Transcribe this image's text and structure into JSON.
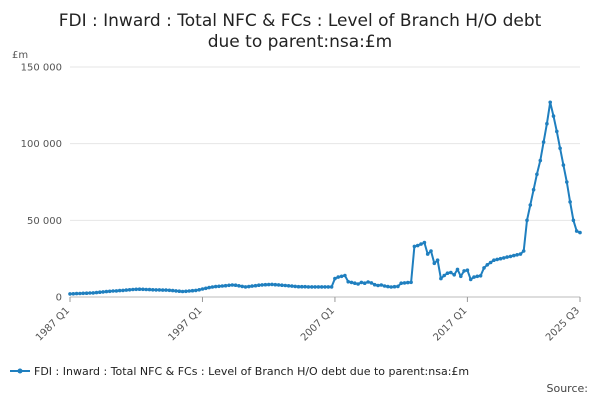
{
  "chart_data": {
    "type": "line",
    "title_line1": "FDI : Inward : Total NFC & FCs : Level of Branch H/O debt",
    "title_line2": "due to parent:nsa:£m",
    "ylabel": "£m",
    "ylim": [
      0,
      150000
    ],
    "yticks": [
      0,
      50000,
      100000,
      150000
    ],
    "ytick_labels": [
      "0",
      "50 000",
      "100 000",
      "150 000"
    ],
    "xtick_labels": [
      "1987 Q1",
      "1997 Q1",
      "2007 Q1",
      "2017 Q1",
      "2025 Q3"
    ],
    "xticks": [
      1987.0,
      1997.0,
      2007.0,
      2017.0,
      2025.5
    ],
    "xlim": [
      1987.0,
      2025.5
    ],
    "grid": true,
    "legend_position": "bottom",
    "color": "#1f7fbf",
    "series": [
      {
        "name": "FDI : Inward : Total NFC & FCs : Level of Branch H/O debt due to parent:nsa:£m",
        "points": [
          [
            1987.0,
            2000
          ],
          [
            1987.25,
            2100
          ],
          [
            1987.5,
            2200
          ],
          [
            1987.75,
            2300
          ],
          [
            1988.0,
            2400
          ],
          [
            1988.25,
            2500
          ],
          [
            1988.5,
            2600
          ],
          [
            1988.75,
            2700
          ],
          [
            1989.0,
            2900
          ],
          [
            1989.25,
            3100
          ],
          [
            1989.5,
            3300
          ],
          [
            1989.75,
            3500
          ],
          [
            1990.0,
            3700
          ],
          [
            1990.25,
            3900
          ],
          [
            1990.5,
            4000
          ],
          [
            1990.75,
            4200
          ],
          [
            1991.0,
            4300
          ],
          [
            1991.25,
            4500
          ],
          [
            1991.5,
            4700
          ],
          [
            1991.75,
            4900
          ],
          [
            1992.0,
            5000
          ],
          [
            1992.25,
            5100
          ],
          [
            1992.5,
            5000
          ],
          [
            1992.75,
            4900
          ],
          [
            1993.0,
            4800
          ],
          [
            1993.25,
            4700
          ],
          [
            1993.5,
            4600
          ],
          [
            1993.75,
            4600
          ],
          [
            1994.0,
            4500
          ],
          [
            1994.25,
            4500
          ],
          [
            1994.5,
            4400
          ],
          [
            1994.75,
            4200
          ],
          [
            1995.0,
            4000
          ],
          [
            1995.25,
            3800
          ],
          [
            1995.5,
            3600
          ],
          [
            1995.75,
            3700
          ],
          [
            1996.0,
            3900
          ],
          [
            1996.25,
            4100
          ],
          [
            1996.5,
            4300
          ],
          [
            1996.75,
            4700
          ],
          [
            1997.0,
            5200
          ],
          [
            1997.25,
            5700
          ],
          [
            1997.5,
            6100
          ],
          [
            1997.75,
            6500
          ],
          [
            1998.0,
            6800
          ],
          [
            1998.25,
            7000
          ],
          [
            1998.5,
            7200
          ],
          [
            1998.75,
            7400
          ],
          [
            1999.0,
            7600
          ],
          [
            1999.25,
            7800
          ],
          [
            1999.5,
            7700
          ],
          [
            1999.75,
            7300
          ],
          [
            2000.0,
            6900
          ],
          [
            2000.25,
            6600
          ],
          [
            2000.5,
            6800
          ],
          [
            2000.75,
            7100
          ],
          [
            2001.0,
            7400
          ],
          [
            2001.25,
            7700
          ],
          [
            2001.5,
            7900
          ],
          [
            2001.75,
            8000
          ],
          [
            2002.0,
            8100
          ],
          [
            2002.25,
            8200
          ],
          [
            2002.5,
            8000
          ],
          [
            2002.75,
            7900
          ],
          [
            2003.0,
            7700
          ],
          [
            2003.25,
            7500
          ],
          [
            2003.5,
            7300
          ],
          [
            2003.75,
            7100
          ],
          [
            2004.0,
            6900
          ],
          [
            2004.25,
            6700
          ],
          [
            2004.5,
            6700
          ],
          [
            2004.75,
            6700
          ],
          [
            2005.0,
            6600
          ],
          [
            2005.25,
            6600
          ],
          [
            2005.5,
            6600
          ],
          [
            2005.75,
            6600
          ],
          [
            2006.0,
            6600
          ],
          [
            2006.25,
            6600
          ],
          [
            2006.5,
            6600
          ],
          [
            2006.75,
            6600
          ],
          [
            2007.0,
            12000
          ],
          [
            2007.25,
            13000
          ],
          [
            2007.5,
            13500
          ],
          [
            2007.75,
            14000
          ],
          [
            2008.0,
            10000
          ],
          [
            2008.25,
            9500
          ],
          [
            2008.5,
            9000
          ],
          [
            2008.75,
            8500
          ],
          [
            2009.0,
            9500
          ],
          [
            2009.25,
            9000
          ],
          [
            2009.5,
            9800
          ],
          [
            2009.75,
            9200
          ],
          [
            2010.0,
            8000
          ],
          [
            2010.25,
            7500
          ],
          [
            2010.5,
            7800
          ],
          [
            2010.75,
            7200
          ],
          [
            2011.0,
            6800
          ],
          [
            2011.25,
            6500
          ],
          [
            2011.5,
            6700
          ],
          [
            2011.75,
            6900
          ],
          [
            2012.0,
            9000
          ],
          [
            2012.25,
            9200
          ],
          [
            2012.5,
            9400
          ],
          [
            2012.75,
            9600
          ],
          [
            2013.0,
            33000
          ],
          [
            2013.25,
            33500
          ],
          [
            2013.5,
            34500
          ],
          [
            2013.75,
            35500
          ],
          [
            2014.0,
            28000
          ],
          [
            2014.25,
            30000
          ],
          [
            2014.5,
            22000
          ],
          [
            2014.75,
            24000
          ],
          [
            2015.0,
            12000
          ],
          [
            2015.25,
            14000
          ],
          [
            2015.5,
            15500
          ],
          [
            2015.75,
            16000
          ],
          [
            2016.0,
            14500
          ],
          [
            2016.25,
            18000
          ],
          [
            2016.5,
            13500
          ],
          [
            2016.75,
            17000
          ],
          [
            2017.0,
            17500
          ],
          [
            2017.25,
            11500
          ],
          [
            2017.5,
            13000
          ],
          [
            2017.75,
            13500
          ],
          [
            2018.0,
            13800
          ],
          [
            2018.25,
            19000
          ],
          [
            2018.5,
            21000
          ],
          [
            2018.75,
            22500
          ],
          [
            2019.0,
            24000
          ],
          [
            2019.25,
            24500
          ],
          [
            2019.5,
            25000
          ],
          [
            2019.75,
            25500
          ],
          [
            2020.0,
            26000
          ],
          [
            2020.25,
            26500
          ],
          [
            2020.5,
            27000
          ],
          [
            2020.75,
            27500
          ],
          [
            2021.0,
            28000
          ],
          [
            2021.25,
            30000
          ],
          [
            2021.5,
            50000
          ],
          [
            2021.75,
            60000
          ],
          [
            2022.0,
            70000
          ],
          [
            2022.25,
            80000
          ],
          [
            2022.5,
            89000
          ],
          [
            2022.75,
            101000
          ],
          [
            2023.0,
            113000
          ],
          [
            2023.25,
            127000
          ],
          [
            2023.5,
            118000
          ],
          [
            2023.75,
            108000
          ],
          [
            2024.0,
            97000
          ],
          [
            2024.25,
            86000
          ],
          [
            2024.5,
            75000
          ],
          [
            2024.75,
            62000
          ],
          [
            2025.0,
            50000
          ],
          [
            2025.25,
            43000
          ],
          [
            2025.5,
            42000
          ]
        ]
      }
    ]
  },
  "source_label": "Source:"
}
